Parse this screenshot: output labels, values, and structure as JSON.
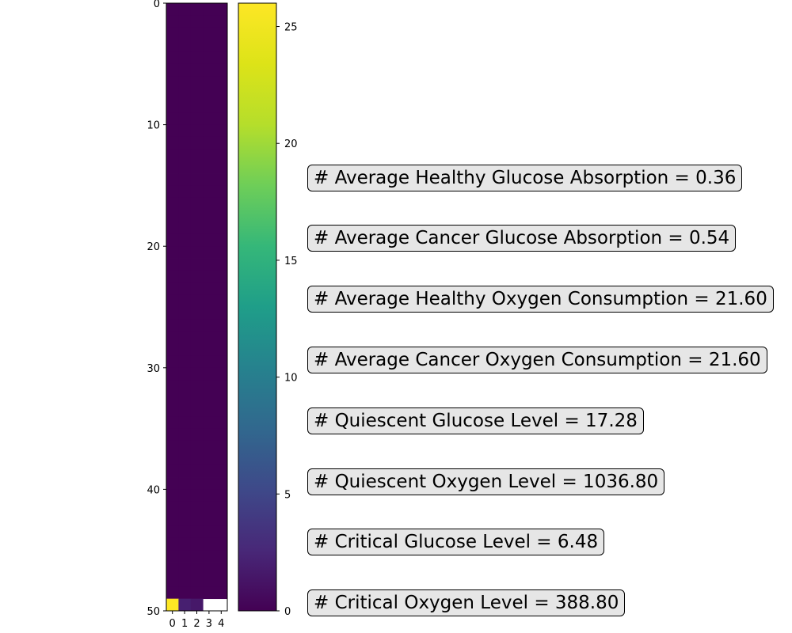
{
  "chart_data": {
    "type": "heatmap",
    "colormap": "viridis",
    "x_ticks": [
      "0",
      "1",
      "2",
      "3",
      "4"
    ],
    "y_ticks": [
      "0",
      "10",
      "20",
      "30",
      "40",
      "50"
    ],
    "xlim": [
      -0.5,
      4.5
    ],
    "ylim": [
      50,
      0
    ],
    "rows": 50,
    "cols": 5,
    "nonzero_cells": [
      {
        "row": 49,
        "col": 0,
        "value": 26
      },
      {
        "row": 49,
        "col": 1,
        "value": 2
      },
      {
        "row": 49,
        "col": 2,
        "value": 1.5
      }
    ],
    "missing_cells": [
      {
        "row": 49,
        "col": 3
      },
      {
        "row": 49,
        "col": 4
      }
    ],
    "default_value": 0,
    "colorbar": {
      "range": [
        0,
        26
      ],
      "ticks": [
        "0",
        "5",
        "10",
        "15",
        "20",
        "25"
      ],
      "tick_values": [
        0,
        5,
        10,
        15,
        20,
        25
      ]
    }
  },
  "annotations": [
    "# Average Healthy Glucose Absorption = 0.36",
    "# Average Cancer Glucose Absorption = 0.54",
    "# Average Healthy Oxygen Consumption = 21.60",
    "# Average Cancer Oxygen Consumption = 21.60",
    "# Quiescent Glucose Level = 17.28",
    "# Quiescent Oxygen Level = 1036.80",
    "# Critical Glucose Level = 6.48",
    "# Critical Oxygen Level = 388.80"
  ]
}
